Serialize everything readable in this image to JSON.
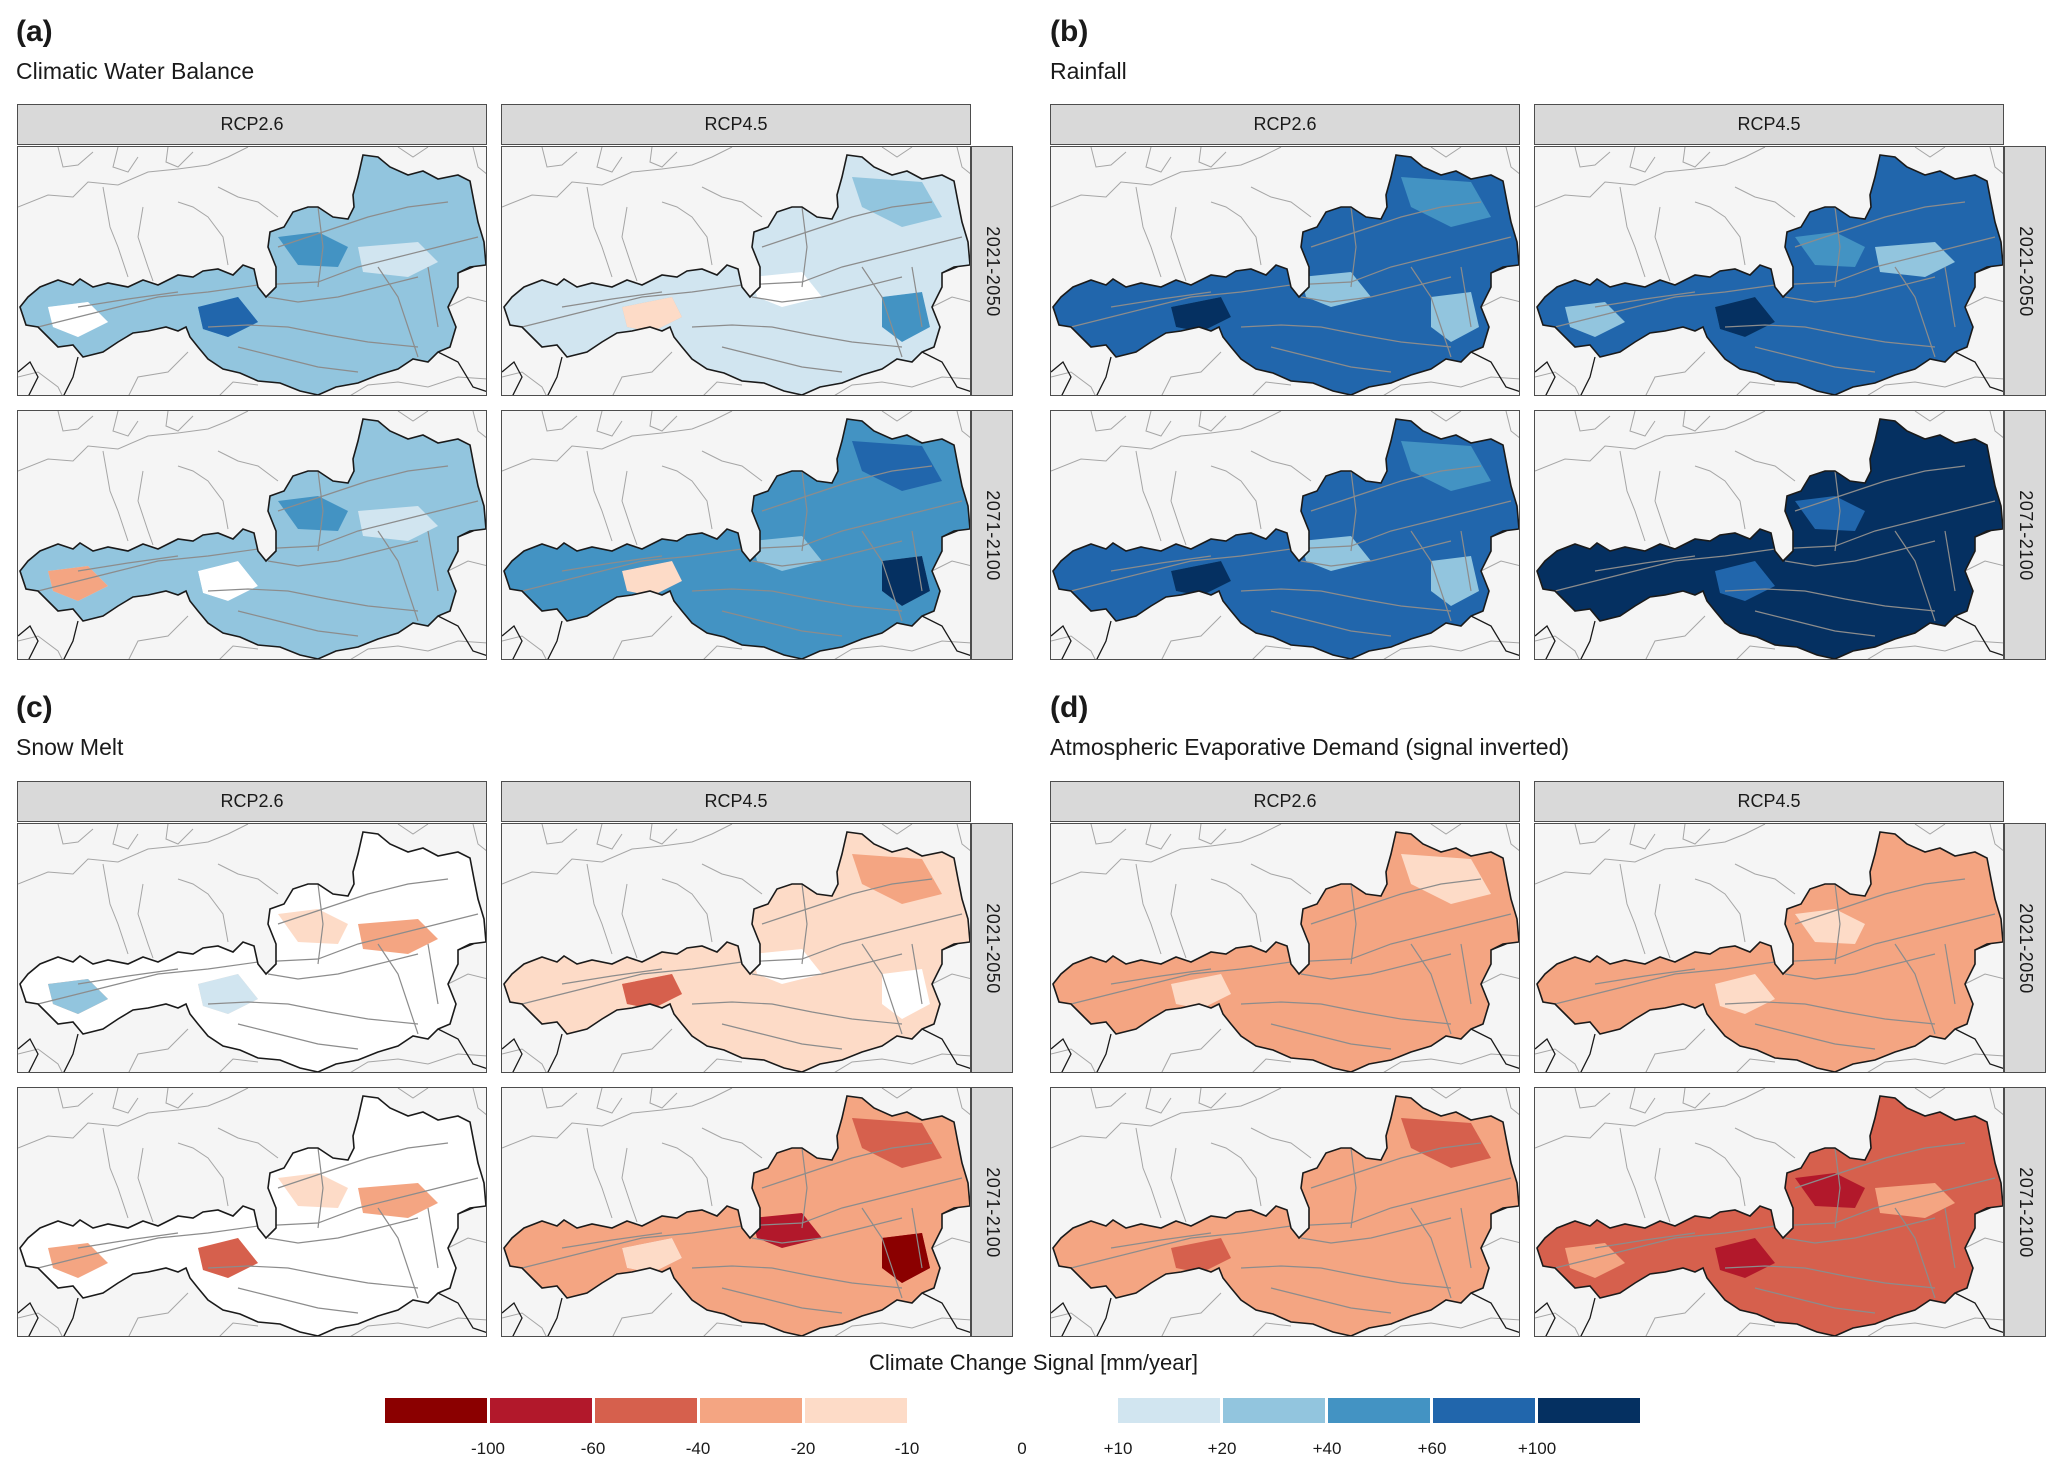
{
  "chart_data": {
    "type": "heatmap",
    "description": "Climate change signal maps for Austria (choropleth small multiples)",
    "legend": {
      "title": "Climate Change Signal [mm/year]",
      "classes": [
        {
          "range": "< -100",
          "color": "#8b0000"
        },
        {
          "range": "-100 to -60",
          "color": "#b2182b"
        },
        {
          "range": "-60 to -40",
          "color": "#d6604d"
        },
        {
          "range": "-40 to -20",
          "color": "#f4a582"
        },
        {
          "range": "-20 to -10",
          "color": "#fddbc7"
        },
        {
          "range": "-10 to +10",
          "color": "#ffffff"
        },
        {
          "range": "+10 to +20",
          "color": "#d1e5f0"
        },
        {
          "range": "+20 to +40",
          "color": "#92c5de"
        },
        {
          "range": "+40 to +60",
          "color": "#4393c3"
        },
        {
          "range": "+60 to +100",
          "color": "#2166ac"
        },
        {
          "range": "> +100",
          "color": "#053061"
        }
      ],
      "tick_labels": [
        "-100",
        "-60",
        "-40",
        "-20",
        "-10",
        "0",
        "+10",
        "+20",
        "+40",
        "+60",
        "+100"
      ]
    },
    "scenarios": [
      "RCP2.6",
      "RCP4.5"
    ],
    "periods": [
      "2021-2050",
      "2071-2100"
    ],
    "panels": [
      {
        "label": "(a)",
        "title": "Climatic Water Balance",
        "maps": [
          {
            "scenario": "RCP2.6",
            "period": "2021-2050",
            "dominant_class": "+20 to +40",
            "patches": [
              "+40 to +60",
              "+10 to +20",
              "+60 to +100",
              "-10 to +10"
            ]
          },
          {
            "scenario": "RCP4.5",
            "period": "2021-2050",
            "dominant_class": "+10 to +20",
            "patches": [
              "+20 to +40",
              "-10 to +10",
              "-20 to -10",
              "+40 to +60"
            ]
          },
          {
            "scenario": "RCP2.6",
            "period": "2071-2100",
            "dominant_class": "+20 to +40",
            "patches": [
              "+40 to +60",
              "+10 to +20",
              "-10 to +10",
              "-40 to -20"
            ]
          },
          {
            "scenario": "RCP4.5",
            "period": "2071-2100",
            "dominant_class": "+40 to +60",
            "patches": [
              "+60 to +100",
              "+20 to +40",
              "-20 to -10",
              "> +100"
            ]
          }
        ]
      },
      {
        "label": "(b)",
        "title": "Rainfall",
        "maps": [
          {
            "scenario": "RCP2.6",
            "period": "2021-2050",
            "dominant_class": "+60 to +100",
            "patches": [
              "+40 to +60",
              "+20 to +40",
              "> +100"
            ]
          },
          {
            "scenario": "RCP4.5",
            "period": "2021-2050",
            "dominant_class": "+60 to +100",
            "patches": [
              "+40 to +60",
              "+20 to +40",
              "> +100"
            ]
          },
          {
            "scenario": "RCP2.6",
            "period": "2071-2100",
            "dominant_class": "+60 to +100",
            "patches": [
              "+40 to +60",
              "+20 to +40",
              "> +100"
            ]
          },
          {
            "scenario": "RCP4.5",
            "period": "2071-2100",
            "dominant_class": "> +100",
            "patches": [
              "+60 to +100"
            ]
          }
        ]
      },
      {
        "label": "(c)",
        "title": "Snow Melt",
        "maps": [
          {
            "scenario": "RCP2.6",
            "period": "2021-2050",
            "dominant_class": "-10 to +10",
            "patches": [
              "-20 to -10",
              "-40 to -20",
              "+10 to +20",
              "+20 to +40"
            ]
          },
          {
            "scenario": "RCP4.5",
            "period": "2021-2050",
            "dominant_class": "-20 to -10",
            "patches": [
              "-40 to -20",
              "-10 to +10",
              "-60 to -40"
            ]
          },
          {
            "scenario": "RCP2.6",
            "period": "2071-2100",
            "dominant_class": "-10 to +10",
            "patches": [
              "-20 to -10",
              "-40 to -20",
              "-60 to -40"
            ]
          },
          {
            "scenario": "RCP4.5",
            "period": "2071-2100",
            "dominant_class": "-40 to -20",
            "patches": [
              "-60 to -40",
              "-100 to -60",
              "-20 to -10",
              "< -100"
            ]
          }
        ]
      },
      {
        "label": "(d)",
        "title": "Atmospheric Evaporative Demand (signal inverted)",
        "maps": [
          {
            "scenario": "RCP2.6",
            "period": "2021-2050",
            "dominant_class": "-40 to -20",
            "patches": [
              "-20 to -10"
            ]
          },
          {
            "scenario": "RCP4.5",
            "period": "2021-2050",
            "dominant_class": "-40 to -20",
            "patches": [
              "-20 to -10"
            ]
          },
          {
            "scenario": "RCP2.6",
            "period": "2071-2100",
            "dominant_class": "-40 to -20",
            "patches": [
              "-60 to -40"
            ]
          },
          {
            "scenario": "RCP4.5",
            "period": "2071-2100",
            "dominant_class": "-60 to -40",
            "patches": [
              "-100 to -60",
              "-40 to -20"
            ]
          }
        ]
      }
    ]
  },
  "colors": {
    "strip_bg": "#d9d9d9",
    "map_bg": "#f5f5f5",
    "border": "#1a1a1a",
    "river": "#8c8c8c",
    "neighbor_line": "#a6a6a6"
  }
}
